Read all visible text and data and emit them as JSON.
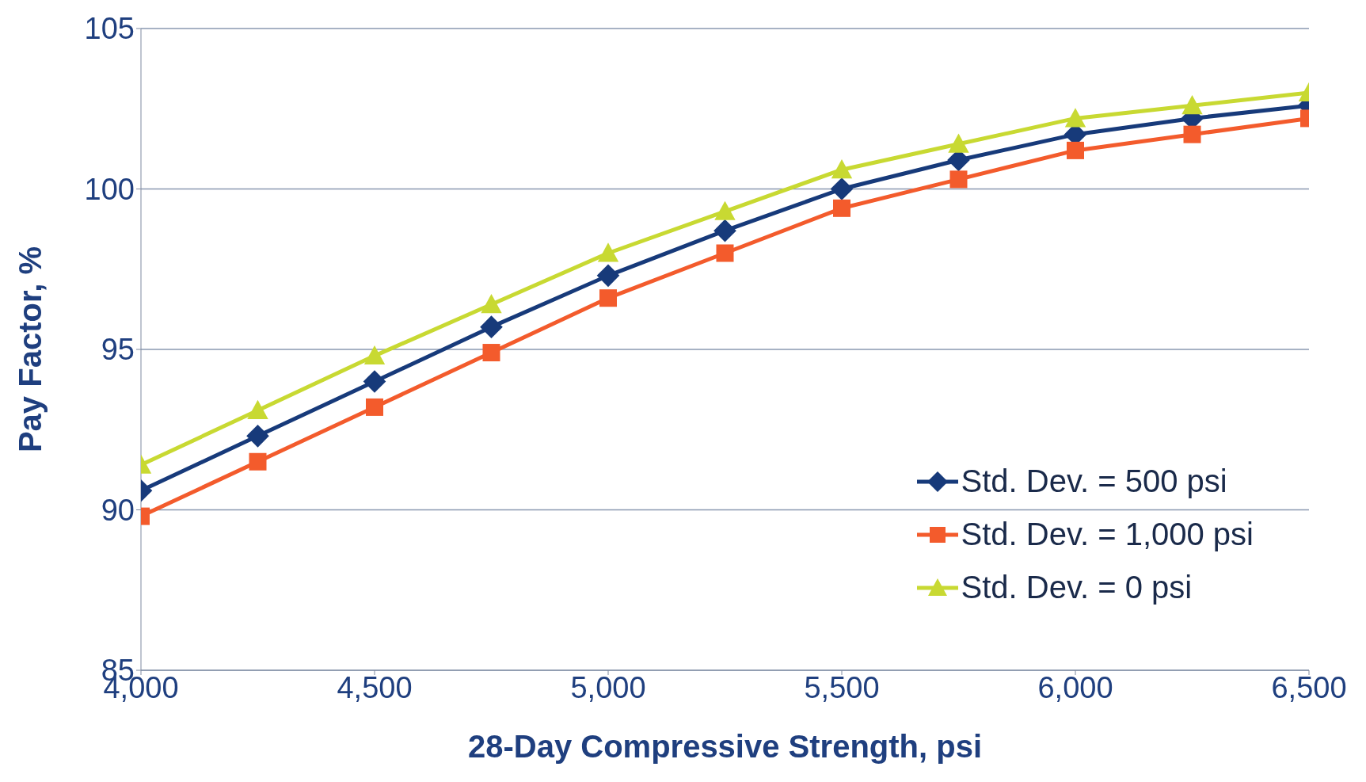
{
  "chart_data": {
    "type": "line",
    "xlabel": "28-Day Compressive Strength, psi",
    "ylabel": "Pay Factor, %",
    "x": [
      4000,
      4250,
      4500,
      4750,
      5000,
      5250,
      5500,
      5750,
      6000,
      6250,
      6500
    ],
    "series": [
      {
        "name": "Std. Dev. = 500 psi",
        "color": "#173a7a",
        "marker": "diamond",
        "values": [
          90.6,
          92.3,
          94.0,
          95.7,
          97.3,
          98.7,
          100.0,
          100.9,
          101.7,
          102.2,
          102.6
        ]
      },
      {
        "name": "Std. Dev. = 1,000 psi",
        "color": "#f35b2c",
        "marker": "square",
        "values": [
          89.8,
          91.5,
          93.2,
          94.9,
          96.6,
          98.0,
          99.4,
          100.3,
          101.2,
          101.7,
          102.2
        ]
      },
      {
        "name": "Std. Dev. = 0 psi",
        "color": "#c8d932",
        "marker": "triangle",
        "values": [
          91.4,
          93.1,
          94.8,
          96.4,
          98.0,
          99.3,
          100.6,
          101.4,
          102.2,
          102.6,
          103.0
        ]
      }
    ],
    "xlim": [
      4000,
      6500
    ],
    "xticks": [
      {
        "value": 4000,
        "label": "4,000"
      },
      {
        "value": 4500,
        "label": "4,500"
      },
      {
        "value": 5000,
        "label": "5,000"
      },
      {
        "value": 5500,
        "label": "5,500"
      },
      {
        "value": 6000,
        "label": "6,000"
      },
      {
        "value": 6500,
        "label": "6,500"
      }
    ],
    "ylim": [
      85,
      105
    ],
    "yticks": [
      85,
      90,
      95,
      100,
      105
    ],
    "grid": "y",
    "legend": "bottom right",
    "line_style": "solid"
  }
}
